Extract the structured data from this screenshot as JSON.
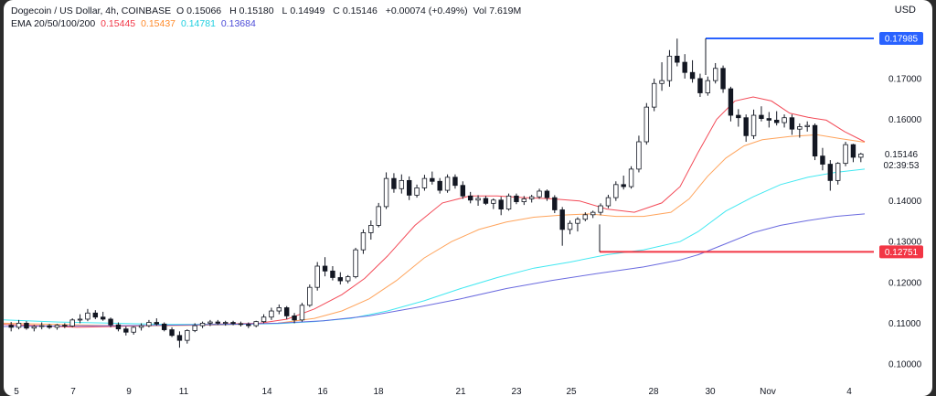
{
  "header": {
    "title": "Dogecoin / US Dollar, 4h, COINBASE",
    "ohlc": {
      "o_label": "O",
      "o": "0.15066",
      "h_label": "H",
      "h": "0.15180",
      "l_label": "L",
      "l": "0.14949",
      "c_label": "C",
      "c": "0.15146",
      "change": "+0.00074 (+0.49%)",
      "vol_label": "Vol",
      "vol": "7.619M"
    },
    "ema_label": "EMA 20/50/100/200",
    "ema_values": [
      "0.15445",
      "0.15437",
      "0.14781",
      "0.13684"
    ]
  },
  "currency": "USD",
  "colors": {
    "up": "#131722",
    "down": "#131722",
    "ema20": "#f23645",
    "ema50": "#ff9a4a",
    "ema100": "#2ee6f0",
    "ema200": "#5b5bdc",
    "level_high": "#2962ff",
    "level_low": "#f23645"
  },
  "chart_data": {
    "type": "candlestick",
    "y_ticks": [
      "0.17000",
      "0.16000",
      "0.15000",
      "0.14000",
      "0.13000",
      "0.12000",
      "0.11000",
      "0.10000"
    ],
    "ylim": [
      0.0975,
      0.1825
    ],
    "x_labels": [
      "5",
      "7",
      "9",
      "11",
      "14",
      "16",
      "18",
      "21",
      "23",
      "25",
      "28",
      "30",
      "Nov",
      "4"
    ],
    "last_price": "0.15146",
    "countdown": "02:39:53",
    "level_high": "0.17985",
    "level_low": "0.12751",
    "candles": [
      [
        0.1095,
        0.1103,
        0.108,
        0.109
      ],
      [
        0.109,
        0.1108,
        0.1085,
        0.11
      ],
      [
        0.11,
        0.1105,
        0.1084,
        0.1088
      ],
      [
        0.1088,
        0.1096,
        0.108,
        0.1092
      ],
      [
        0.1092,
        0.1102,
        0.1085,
        0.1094
      ],
      [
        0.1094,
        0.1098,
        0.1086,
        0.109
      ],
      [
        0.109,
        0.1098,
        0.1084,
        0.1095
      ],
      [
        0.1095,
        0.11,
        0.1088,
        0.1093
      ],
      [
        0.1093,
        0.1112,
        0.109,
        0.1108
      ],
      [
        0.1108,
        0.1122,
        0.11,
        0.111
      ],
      [
        0.111,
        0.1135,
        0.1105,
        0.1125
      ],
      [
        0.1125,
        0.1132,
        0.111,
        0.1115
      ],
      [
        0.1115,
        0.1128,
        0.1106,
        0.111
      ],
      [
        0.111,
        0.1114,
        0.109,
        0.1096
      ],
      [
        0.1096,
        0.1102,
        0.108,
        0.1086
      ],
      [
        0.1086,
        0.1092,
        0.107,
        0.1078
      ],
      [
        0.1078,
        0.1092,
        0.1072,
        0.109
      ],
      [
        0.109,
        0.11,
        0.1082,
        0.1094
      ],
      [
        0.1094,
        0.1108,
        0.109,
        0.1102
      ],
      [
        0.1102,
        0.1112,
        0.1094,
        0.1098
      ],
      [
        0.1098,
        0.1102,
        0.108,
        0.1084
      ],
      [
        0.1084,
        0.109,
        0.1066,
        0.107
      ],
      [
        0.107,
        0.108,
        0.104,
        0.1058
      ],
      [
        0.1058,
        0.1085,
        0.105,
        0.1082
      ],
      [
        0.1082,
        0.11,
        0.1078,
        0.1094
      ],
      [
        0.1094,
        0.1104,
        0.1088,
        0.11
      ],
      [
        0.11,
        0.1108,
        0.1093,
        0.1103
      ],
      [
        0.1103,
        0.1108,
        0.1096,
        0.11
      ],
      [
        0.11,
        0.1106,
        0.1094,
        0.1102
      ],
      [
        0.1102,
        0.1106,
        0.1095,
        0.1099
      ],
      [
        0.1099,
        0.1104,
        0.1092,
        0.1097
      ],
      [
        0.1097,
        0.1102,
        0.1088,
        0.1094
      ],
      [
        0.1094,
        0.1106,
        0.109,
        0.1104
      ],
      [
        0.1104,
        0.1122,
        0.11,
        0.1115
      ],
      [
        0.1115,
        0.1138,
        0.1108,
        0.113
      ],
      [
        0.113,
        0.1146,
        0.1122,
        0.1138
      ],
      [
        0.1138,
        0.1142,
        0.111,
        0.1118
      ],
      [
        0.1118,
        0.1125,
        0.11,
        0.1108
      ],
      [
        0.1108,
        0.115,
        0.1104,
        0.1144
      ],
      [
        0.1144,
        0.1195,
        0.114,
        0.1188
      ],
      [
        0.1188,
        0.125,
        0.118,
        0.124
      ],
      [
        0.124,
        0.1262,
        0.1215,
        0.1228
      ],
      [
        0.1228,
        0.124,
        0.1205,
        0.1212
      ],
      [
        0.1212,
        0.1225,
        0.1195,
        0.1204
      ],
      [
        0.1204,
        0.1218,
        0.1198,
        0.1214
      ],
      [
        0.1214,
        0.1285,
        0.121,
        0.128
      ],
      [
        0.128,
        0.133,
        0.127,
        0.1322
      ],
      [
        0.1322,
        0.1352,
        0.1305,
        0.134
      ],
      [
        0.134,
        0.1395,
        0.1335,
        0.1386
      ],
      [
        0.1386,
        0.147,
        0.138,
        0.1455
      ],
      [
        0.1455,
        0.1468,
        0.142,
        0.143
      ],
      [
        0.143,
        0.1465,
        0.1418,
        0.145
      ],
      [
        0.145,
        0.146,
        0.1402,
        0.1414
      ],
      [
        0.1414,
        0.144,
        0.1408,
        0.1432
      ],
      [
        0.1432,
        0.1464,
        0.1425,
        0.1455
      ],
      [
        0.1455,
        0.1472,
        0.144,
        0.1448
      ],
      [
        0.1448,
        0.1456,
        0.1418,
        0.1426
      ],
      [
        0.1426,
        0.1465,
        0.142,
        0.1458
      ],
      [
        0.1458,
        0.1465,
        0.143,
        0.1438
      ],
      [
        0.1438,
        0.1448,
        0.1405,
        0.1412
      ],
      [
        0.1412,
        0.1422,
        0.1394,
        0.1402
      ],
      [
        0.1402,
        0.1414,
        0.1388,
        0.1406
      ],
      [
        0.1406,
        0.1412,
        0.139,
        0.1394
      ],
      [
        0.1394,
        0.1406,
        0.138,
        0.1402
      ],
      [
        0.1402,
        0.141,
        0.1365,
        0.138
      ],
      [
        0.138,
        0.1418,
        0.1376,
        0.1412
      ],
      [
        0.1412,
        0.1418,
        0.1392,
        0.1398
      ],
      [
        0.1398,
        0.1412,
        0.139,
        0.1405
      ],
      [
        0.1405,
        0.1415,
        0.1396,
        0.141
      ],
      [
        0.141,
        0.143,
        0.1405,
        0.1424
      ],
      [
        0.1424,
        0.1428,
        0.14,
        0.1408
      ],
      [
        0.1408,
        0.1414,
        0.137,
        0.1378
      ],
      [
        0.1378,
        0.1385,
        0.129,
        0.133
      ],
      [
        0.133,
        0.1352,
        0.1318,
        0.1345
      ],
      [
        0.1345,
        0.136,
        0.1325,
        0.1355
      ],
      [
        0.1355,
        0.1372,
        0.135,
        0.1366
      ],
      [
        0.1366,
        0.1376,
        0.1358,
        0.1372
      ],
      [
        0.1372,
        0.1394,
        0.1365,
        0.1388
      ],
      [
        0.1388,
        0.1415,
        0.1382,
        0.1408
      ],
      [
        0.1408,
        0.1448,
        0.14,
        0.144
      ],
      [
        0.144,
        0.1462,
        0.1428,
        0.1435
      ],
      [
        0.1435,
        0.1485,
        0.143,
        0.1478
      ],
      [
        0.1478,
        0.156,
        0.147,
        0.1545
      ],
      [
        0.1545,
        0.164,
        0.1538,
        0.163
      ],
      [
        0.163,
        0.17,
        0.162,
        0.1688
      ],
      [
        0.1688,
        0.174,
        0.167,
        0.1695
      ],
      [
        0.1695,
        0.177,
        0.168,
        0.1755
      ],
      [
        0.1755,
        0.1798,
        0.173,
        0.174
      ],
      [
        0.174,
        0.176,
        0.17,
        0.1715
      ],
      [
        0.1715,
        0.1745,
        0.169,
        0.17
      ],
      [
        0.17,
        0.1712,
        0.1655,
        0.1665
      ],
      [
        0.1665,
        0.1705,
        0.1658,
        0.1695
      ],
      [
        0.1695,
        0.1738,
        0.1688,
        0.1725
      ],
      [
        0.1725,
        0.1732,
        0.1665,
        0.1675
      ],
      [
        0.1675,
        0.168,
        0.1595,
        0.161
      ],
      [
        0.161,
        0.1625,
        0.1582,
        0.1604
      ],
      [
        0.1604,
        0.1612,
        0.1545,
        0.156
      ],
      [
        0.156,
        0.1624,
        0.1552,
        0.161
      ],
      [
        0.161,
        0.1632,
        0.1595,
        0.1602
      ],
      [
        0.1602,
        0.1618,
        0.158,
        0.1598
      ],
      [
        0.1598,
        0.162,
        0.1585,
        0.1592
      ],
      [
        0.1592,
        0.1612,
        0.158,
        0.1604
      ],
      [
        0.1604,
        0.1612,
        0.1562,
        0.1576
      ],
      [
        0.1576,
        0.159,
        0.1555,
        0.1582
      ],
      [
        0.1582,
        0.1595,
        0.157,
        0.1585
      ],
      [
        0.1585,
        0.159,
        0.15,
        0.151
      ],
      [
        0.151,
        0.153,
        0.1475,
        0.149
      ],
      [
        0.149,
        0.15,
        0.1425,
        0.145
      ],
      [
        0.145,
        0.1495,
        0.144,
        0.1492
      ],
      [
        0.1492,
        0.1545,
        0.1485,
        0.1538
      ],
      [
        0.1538,
        0.154,
        0.1495,
        0.1507
      ],
      [
        0.1507,
        0.1518,
        0.1495,
        0.1515
      ]
    ],
    "series": [
      {
        "name": "EMA 20",
        "color_key": "ema20",
        "values": [
          [
            0,
            0.1097
          ],
          [
            40,
            0.1094
          ],
          [
            80,
            0.109
          ],
          [
            120,
            0.1092
          ],
          [
            160,
            0.1094
          ],
          [
            200,
            0.1096
          ],
          [
            240,
            0.1098
          ],
          [
            280,
            0.11
          ],
          [
            310,
            0.111
          ],
          [
            340,
            0.1135
          ],
          [
            370,
            0.117
          ],
          [
            395,
            0.121
          ],
          [
            420,
            0.1265
          ],
          [
            450,
            0.134
          ],
          [
            480,
            0.1395
          ],
          [
            510,
            0.1412
          ],
          [
            540,
            0.1412
          ],
          [
            570,
            0.1408
          ],
          [
            600,
            0.1405
          ],
          [
            630,
            0.14
          ],
          [
            660,
            0.138
          ],
          [
            690,
            0.1372
          ],
          [
            720,
            0.1395
          ],
          [
            740,
            0.1435
          ],
          [
            760,
            0.152
          ],
          [
            780,
            0.16
          ],
          [
            800,
            0.1645
          ],
          [
            820,
            0.1655
          ],
          [
            840,
            0.1645
          ],
          [
            860,
            0.1615
          ],
          [
            880,
            0.1605
          ],
          [
            900,
            0.1598
          ],
          [
            920,
            0.157
          ],
          [
            942,
            0.1545
          ]
        ]
      },
      {
        "name": "EMA 50",
        "color_key": "ema50",
        "values": [
          [
            0,
            0.11
          ],
          [
            60,
            0.1097
          ],
          [
            120,
            0.1094
          ],
          [
            180,
            0.1094
          ],
          [
            240,
            0.1096
          ],
          [
            300,
            0.11
          ],
          [
            340,
            0.1112
          ],
          [
            370,
            0.113
          ],
          [
            400,
            0.116
          ],
          [
            430,
            0.1205
          ],
          [
            460,
            0.126
          ],
          [
            490,
            0.13
          ],
          [
            520,
            0.133
          ],
          [
            550,
            0.1348
          ],
          [
            580,
            0.136
          ],
          [
            610,
            0.1365
          ],
          [
            640,
            0.1368
          ],
          [
            670,
            0.1362
          ],
          [
            700,
            0.1362
          ],
          [
            730,
            0.1372
          ],
          [
            750,
            0.1405
          ],
          [
            770,
            0.146
          ],
          [
            790,
            0.1505
          ],
          [
            810,
            0.1535
          ],
          [
            830,
            0.155
          ],
          [
            860,
            0.1558
          ],
          [
            890,
            0.1562
          ],
          [
            915,
            0.1553
          ],
          [
            942,
            0.1544
          ]
        ]
      },
      {
        "name": "EMA 100",
        "color_key": "ema100",
        "values": [
          [
            0,
            0.1108
          ],
          [
            60,
            0.1103
          ],
          [
            120,
            0.11
          ],
          [
            180,
            0.1097
          ],
          [
            240,
            0.1097
          ],
          [
            300,
            0.1099
          ],
          [
            340,
            0.1104
          ],
          [
            380,
            0.1112
          ],
          [
            420,
            0.113
          ],
          [
            460,
            0.1155
          ],
          [
            500,
            0.1185
          ],
          [
            540,
            0.1212
          ],
          [
            580,
            0.1235
          ],
          [
            620,
            0.125
          ],
          [
            660,
            0.1268
          ],
          [
            700,
            0.128
          ],
          [
            740,
            0.13
          ],
          [
            760,
            0.1325
          ],
          [
            790,
            0.1375
          ],
          [
            820,
            0.141
          ],
          [
            850,
            0.144
          ],
          [
            880,
            0.1458
          ],
          [
            910,
            0.147
          ],
          [
            942,
            0.1478
          ]
        ]
      },
      {
        "name": "EMA 200",
        "color_key": "ema200",
        "values": [
          [
            0,
            0.1092
          ],
          [
            60,
            0.1093
          ],
          [
            120,
            0.1094
          ],
          [
            180,
            0.1095
          ],
          [
            240,
            0.1097
          ],
          [
            300,
            0.11
          ],
          [
            350,
            0.1106
          ],
          [
            400,
            0.1118
          ],
          [
            450,
            0.1138
          ],
          [
            500,
            0.116
          ],
          [
            550,
            0.1185
          ],
          [
            600,
            0.1205
          ],
          [
            650,
            0.1222
          ],
          [
            700,
            0.1238
          ],
          [
            740,
            0.1255
          ],
          [
            760,
            0.1268
          ],
          [
            790,
            0.1295
          ],
          [
            820,
            0.1322
          ],
          [
            850,
            0.134
          ],
          [
            880,
            0.1352
          ],
          [
            910,
            0.1362
          ],
          [
            942,
            0.1368
          ]
        ]
      }
    ]
  }
}
